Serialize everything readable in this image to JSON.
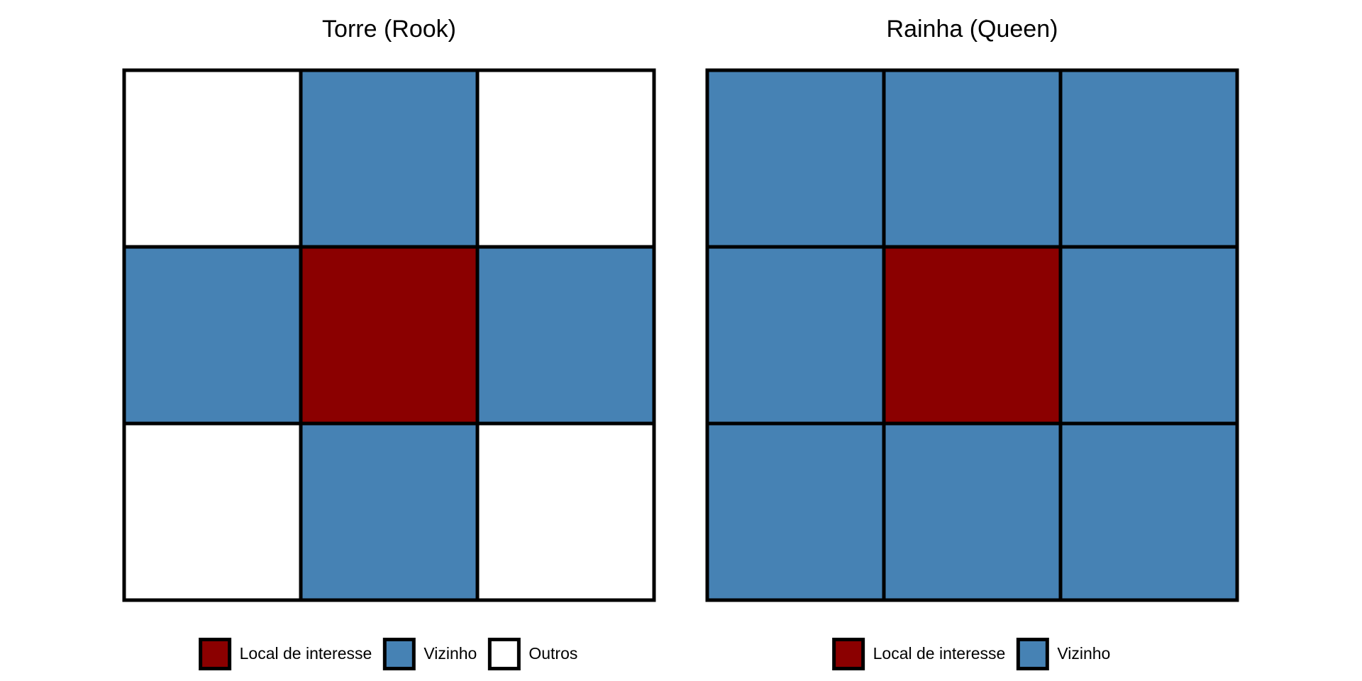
{
  "panels": [
    {
      "title": "Torre (Rook)",
      "cells": [
        [
          "#ffffff",
          "#4682b4",
          "#ffffff"
        ],
        [
          "#4682b4",
          "#8b0000",
          "#4682b4"
        ],
        [
          "#ffffff",
          "#4682b4",
          "#ffffff"
        ]
      ],
      "legend": [
        {
          "label": "Local de interesse",
          "color": "#8b0000"
        },
        {
          "label": "Vizinho",
          "color": "#4682b4"
        },
        {
          "label": "Outros",
          "color": "#ffffff"
        }
      ]
    },
    {
      "title": "Rainha (Queen)",
      "cells": [
        [
          "#4682b4",
          "#4682b4",
          "#4682b4"
        ],
        [
          "#4682b4",
          "#8b0000",
          "#4682b4"
        ],
        [
          "#4682b4",
          "#4682b4",
          "#4682b4"
        ]
      ],
      "legend": [
        {
          "label": "Local de interesse",
          "color": "#8b0000"
        },
        {
          "label": "Vizinho",
          "color": "#4682b4"
        }
      ]
    }
  ]
}
